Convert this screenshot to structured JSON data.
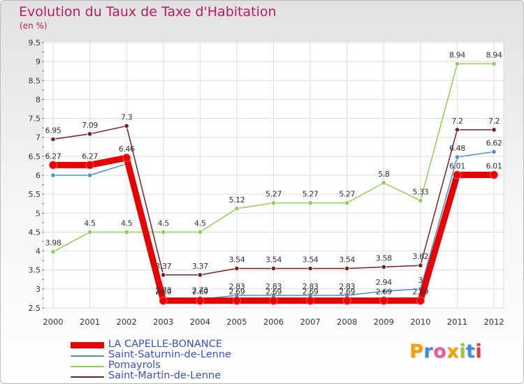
{
  "title": "Evolution du Taux de Taxe d'Habitation",
  "unit": "(en %)",
  "logo": {
    "letters": [
      "P",
      "r",
      "o",
      "x",
      "i",
      "t",
      "i"
    ],
    "colors": [
      "#f4a000",
      "#3f8be0",
      "#e85c9a",
      "#f4a000",
      "#9bc53d",
      "#3f8be0",
      "#e53935"
    ]
  },
  "chart_data": {
    "type": "line",
    "x": [
      "2000",
      "2001",
      "2002",
      "2003",
      "2004",
      "2005",
      "2006",
      "2007",
      "2008",
      "2009",
      "2010",
      "2011",
      "2012"
    ],
    "ylim": [
      2.5,
      9.5
    ],
    "yticks": [
      "2.5",
      "3",
      "3.5",
      "4",
      "4.5",
      "5",
      "5.5",
      "6",
      "6.5",
      "7",
      "7.5",
      "8",
      "8.5",
      "9",
      "9.5"
    ],
    "grid": true,
    "legend_position": "bottom-left",
    "series": [
      {
        "name": "LA CAPELLE-BONANCE",
        "color": "#e80000",
        "values": [
          6.27,
          6.27,
          6.46,
          2.69,
          2.69,
          2.69,
          2.69,
          2.69,
          2.69,
          2.69,
          2.69,
          6.01,
          6.01
        ],
        "labels": [
          "6.27",
          "6.27",
          "6.46",
          "2.69",
          "2.69",
          "2.69",
          "2.69",
          "2.69",
          "2.69",
          "2.69",
          "2.69",
          "6.01",
          "6.01"
        ]
      },
      {
        "name": "Saint-Saturnin-de-Lenne",
        "color": "#4a90c8",
        "values": [
          6.0,
          6.0,
          6.3,
          2.73,
          2.73,
          2.83,
          2.83,
          2.83,
          2.83,
          2.94,
          3.0,
          6.48,
          6.62
        ],
        "labels": [
          "",
          "",
          "",
          "2.73",
          "2.73",
          "2.83",
          "2.83",
          "2.83",
          "2.83",
          "2.94",
          "3",
          "6.48",
          "6.62"
        ]
      },
      {
        "name": "Pomayrols",
        "color": "#8fd14f",
        "values": [
          3.98,
          4.5,
          4.5,
          4.5,
          4.5,
          5.12,
          5.27,
          5.27,
          5.27,
          5.8,
          5.33,
          8.94,
          8.94
        ],
        "labels": [
          "3.98",
          "4.5",
          "4.5",
          "4.5",
          "4.5",
          "5.12",
          "5.27",
          "5.27",
          "5.27",
          "5.8",
          "5.33",
          "8.94",
          "8.94"
        ]
      },
      {
        "name": "Saint-Martin-de-Lenne",
        "color": "#7a1f1f",
        "values": [
          6.95,
          7.09,
          7.3,
          3.37,
          3.37,
          3.54,
          3.54,
          3.54,
          3.54,
          3.58,
          3.62,
          7.2,
          7.2
        ],
        "labels": [
          "6.95",
          "7.09",
          "7.3",
          "3.37",
          "3.37",
          "3.54",
          "3.54",
          "3.54",
          "3.54",
          "3.58",
          "3.62",
          "7.2",
          "7.2"
        ]
      }
    ]
  }
}
